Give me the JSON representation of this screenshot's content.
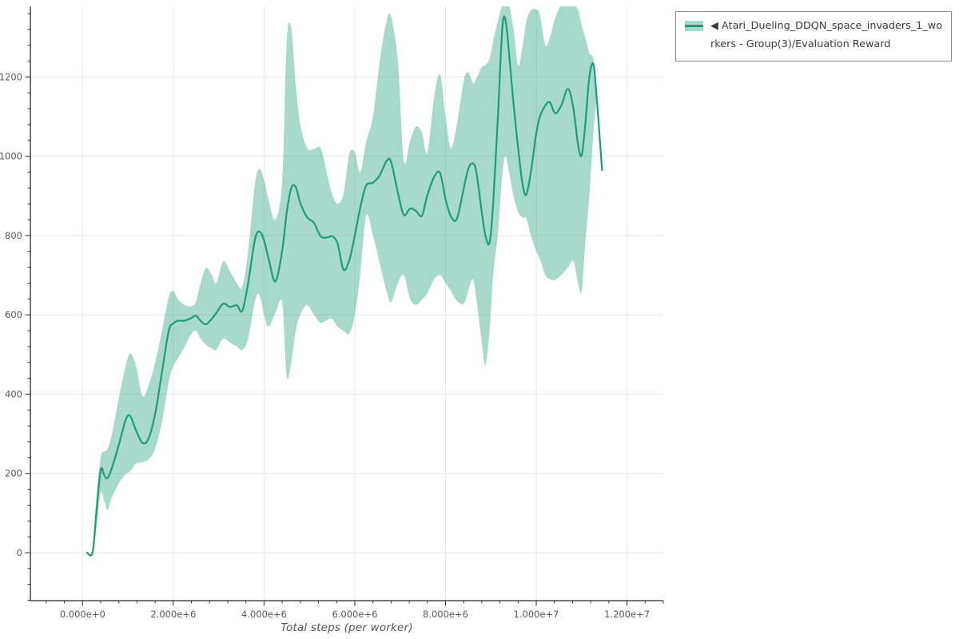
{
  "legend": {
    "label": "◀ Atari_Dueling_DDQN_space_invaders_1_workers - Group(3)/Evaluation Reward"
  },
  "colors": {
    "line": "#1b9e77",
    "band_fill": "#1b9e77",
    "band_opacity": 0.38,
    "grid": "#e8e8e8",
    "spine": "#2b2b2b",
    "tick": "#2b2b2b",
    "tick_label": "#595959",
    "axis_title": "#555555",
    "legend_border": "#8f8f8f",
    "legend_text": "#3b3b3b",
    "background": "#ffffff"
  },
  "chart_data": {
    "type": "line",
    "title": "",
    "xlabel": "Total steps (per worker)",
    "ylabel": "",
    "grid": true,
    "legend_position": "outside top-right",
    "xlim": [
      -1150000,
      12800000
    ],
    "ylim": [
      -121,
      1378
    ],
    "x_tick_values": [
      0,
      2000000,
      4000000,
      6000000,
      8000000,
      10000000,
      12000000
    ],
    "x_tick_labels": [
      "0.000e+0",
      "2.000e+6",
      "4.000e+6",
      "6.000e+6",
      "8.000e+6",
      "1.000e+7",
      "1.200e+7"
    ],
    "x_minor_step": 400000,
    "y_tick_values": [
      0,
      200,
      400,
      600,
      800,
      1000,
      1200
    ],
    "y_tick_labels": [
      "0",
      "200",
      "400",
      "600",
      "800",
      "1000",
      "1200"
    ],
    "y_minor_step": 40,
    "series": [
      {
        "name": "◀ Atari_Dueling_DDQN_space_invaders_1_workers - Group(3)/Evaluation Reward",
        "x": [
          100000,
          220000,
          300000,
          400000,
          480000,
          550000,
          650000,
          800000,
          950000,
          1050000,
          1180000,
          1320000,
          1450000,
          1600000,
          1750000,
          1900000,
          2000000,
          2100000,
          2250000,
          2400000,
          2500000,
          2600000,
          2720000,
          2850000,
          2950000,
          3100000,
          3250000,
          3400000,
          3520000,
          3650000,
          3800000,
          3900000,
          4000000,
          4100000,
          4250000,
          4400000,
          4500000,
          4600000,
          4700000,
          4800000,
          4950000,
          5100000,
          5250000,
          5400000,
          5500000,
          5620000,
          5750000,
          5880000,
          6000000,
          6120000,
          6250000,
          6400000,
          6550000,
          6700000,
          6800000,
          6950000,
          7080000,
          7220000,
          7350000,
          7480000,
          7600000,
          7750000,
          7880000,
          8000000,
          8120000,
          8250000,
          8400000,
          8500000,
          8600000,
          8680000,
          8800000,
          8880000,
          8970000,
          9050000,
          9150000,
          9250000,
          9320000,
          9400000,
          9500000,
          9600000,
          9700000,
          9780000,
          9880000,
          10000000,
          10080000,
          10200000,
          10300000,
          10420000,
          10550000,
          10700000,
          10820000,
          10920000,
          11000000,
          11080000,
          11170000,
          11260000,
          11330000,
          11390000,
          11450000
        ],
        "mean": [
          0,
          0,
          95,
          208,
          195,
          188,
          215,
          272,
          335,
          345,
          308,
          277,
          287,
          350,
          455,
          560,
          578,
          585,
          585,
          592,
          598,
          585,
          576,
          590,
          605,
          628,
          620,
          624,
          610,
          680,
          790,
          810,
          788,
          742,
          684,
          762,
          858,
          920,
          922,
          882,
          846,
          832,
          798,
          795,
          798,
          780,
          714,
          738,
          800,
          870,
          926,
          933,
          952,
          988,
          986,
          908,
          852,
          868,
          862,
          850,
          902,
          948,
          958,
          892,
          848,
          842,
          918,
          968,
          982,
          960,
          858,
          800,
          782,
          880,
          1090,
          1320,
          1345,
          1260,
          1130,
          1020,
          928,
          903,
          960,
          1058,
          1100,
          1128,
          1136,
          1108,
          1128,
          1170,
          1120,
          1030,
          1002,
          1080,
          1200,
          1232,
          1150,
          1060,
          965
        ],
        "lower": [
          0,
          0,
          55,
          150,
          130,
          108,
          140,
          175,
          198,
          205,
          225,
          228,
          235,
          262,
          330,
          430,
          470,
          490,
          520,
          552,
          560,
          540,
          525,
          515,
          512,
          540,
          530,
          520,
          512,
          540,
          635,
          650,
          600,
          570,
          604,
          630,
          445,
          480,
          560,
          600,
          625,
          600,
          580,
          588,
          590,
          570,
          560,
          553,
          600,
          700,
          850,
          800,
          730,
          660,
          632,
          680,
          700,
          640,
          625,
          638,
          655,
          690,
          700,
          680,
          660,
          635,
          628,
          660,
          690,
          640,
          530,
          473,
          560,
          700,
          800,
          950,
          1000,
          960,
          900,
          860,
          845,
          843,
          800,
          760,
          740,
          700,
          690,
          688,
          700,
          720,
          735,
          680,
          660,
          780,
          900,
          1060,
          1140,
          null,
          null
        ],
        "upper": [
          0,
          0,
          135,
          240,
          255,
          262,
          300,
          390,
          470,
          503,
          470,
          395,
          420,
          480,
          560,
          645,
          660,
          640,
          625,
          622,
          633,
          680,
          718,
          700,
          680,
          735,
          710,
          680,
          670,
          760,
          930,
          968,
          940,
          890,
          840,
          940,
          1290,
          1323,
          1180,
          1080,
          1020,
          1018,
          1020,
          950,
          905,
          880,
          905,
          1005,
          1010,
          960,
          1035,
          1100,
          1240,
          1340,
          1352,
          1240,
          990,
          1040,
          1075,
          1060,
          1010,
          1150,
          1206,
          1100,
          1020,
          1080,
          1190,
          1212,
          1185,
          1196,
          1225,
          1230,
          1245,
          1290,
          1340,
          1380,
          1380,
          1380,
          1320,
          1228,
          1280,
          1340,
          1368,
          1370,
          1357,
          1280,
          1300,
          1350,
          1380,
          1380,
          1380,
          1370,
          1330,
          1300,
          1260,
          1245,
          1160,
          null,
          null
        ]
      }
    ]
  }
}
